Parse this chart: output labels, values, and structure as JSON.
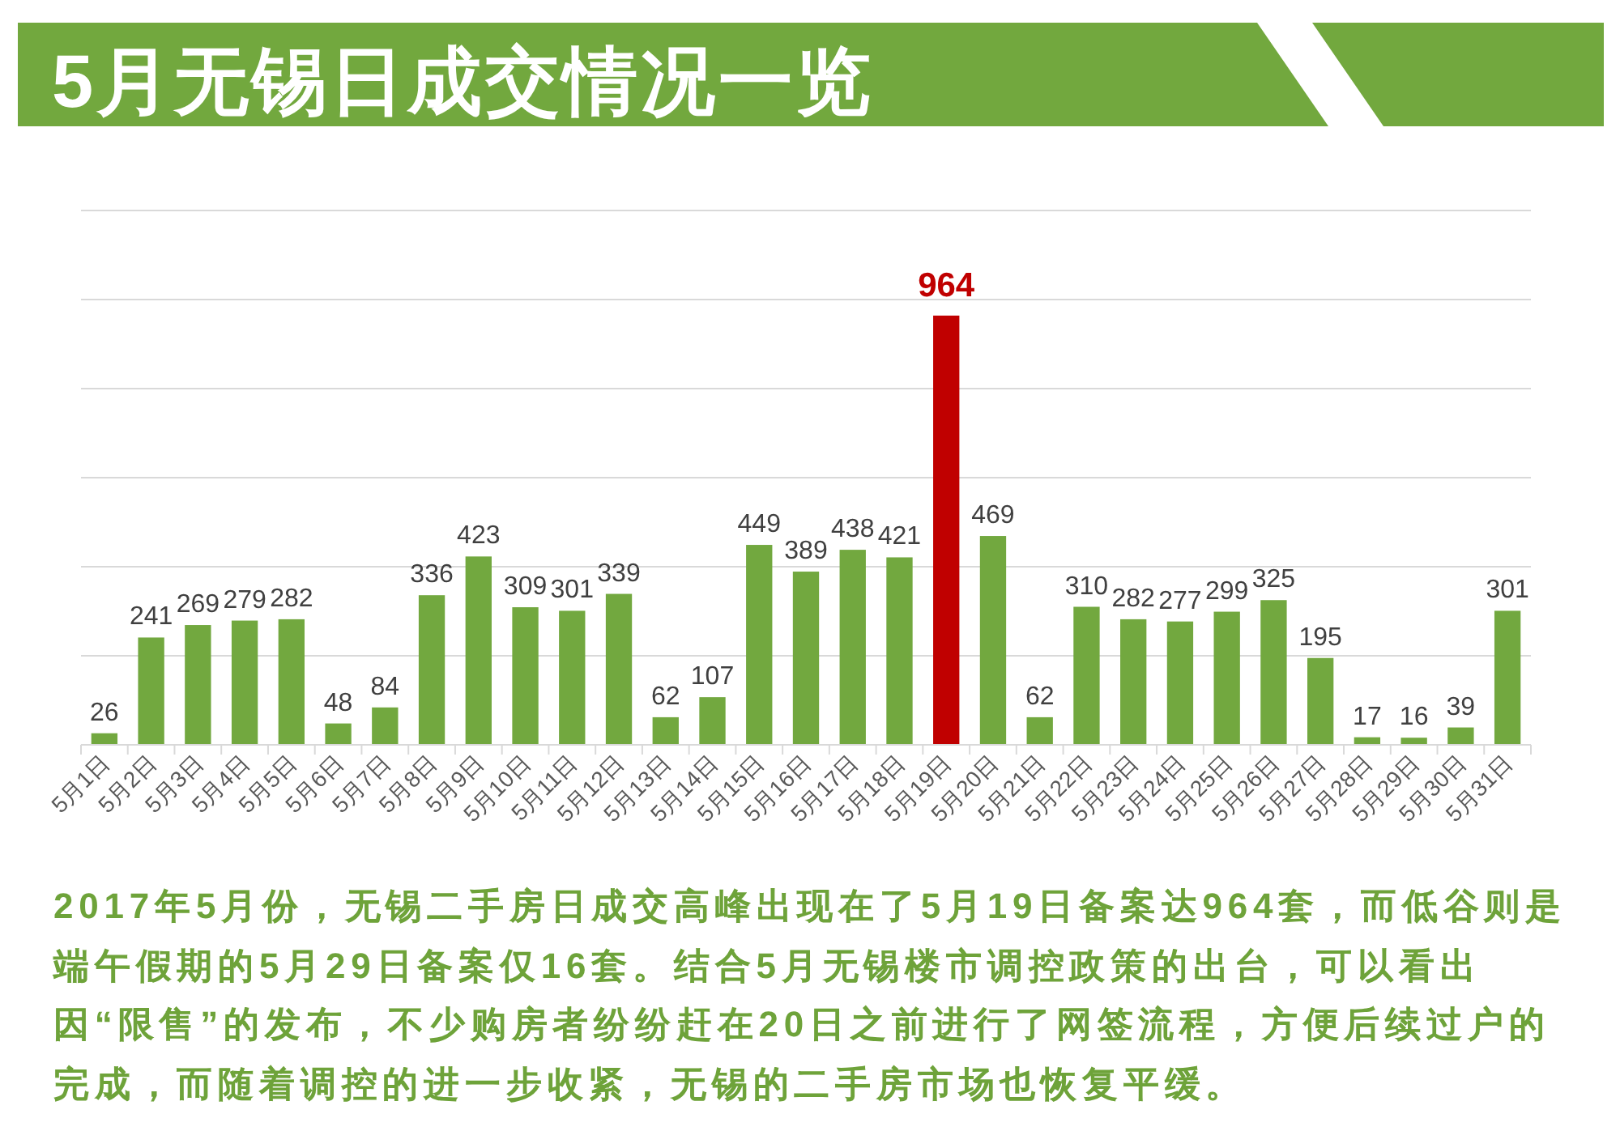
{
  "chart_data": {
    "type": "bar",
    "title": "5月无锡日成交情况一览",
    "categories": [
      "5月1日",
      "5月2日",
      "5月3日",
      "5月4日",
      "5月5日",
      "5月6日",
      "5月7日",
      "5月8日",
      "5月9日",
      "5月10日",
      "5月11日",
      "5月12日",
      "5月13日",
      "5月14日",
      "5月15日",
      "5月16日",
      "5月17日",
      "5月18日",
      "5月19日",
      "5月20日",
      "5月21日",
      "5月22日",
      "5月23日",
      "5月24日",
      "5月25日",
      "5月26日",
      "5月27日",
      "5月28日",
      "5月29日",
      "5月30日",
      "5月31日"
    ],
    "values": [
      26,
      241,
      269,
      279,
      282,
      48,
      84,
      336,
      423,
      309,
      301,
      339,
      62,
      107,
      449,
      389,
      438,
      421,
      964,
      469,
      62,
      310,
      282,
      277,
      299,
      325,
      195,
      17,
      16,
      39,
      301
    ],
    "colors": [
      "#72a83f",
      "#72a83f",
      "#72a83f",
      "#72a83f",
      "#72a83f",
      "#72a83f",
      "#72a83f",
      "#72a83f",
      "#72a83f",
      "#72a83f",
      "#72a83f",
      "#72a83f",
      "#72a83f",
      "#72a83f",
      "#72a83f",
      "#72a83f",
      "#72a83f",
      "#72a83f",
      "#c00000",
      "#72a83f",
      "#72a83f",
      "#72a83f",
      "#72a83f",
      "#72a83f",
      "#72a83f",
      "#72a83f",
      "#72a83f",
      "#72a83f",
      "#72a83f",
      "#72a83f",
      "#72a83f"
    ],
    "ylim": [
      0,
      1200
    ],
    "yticks": [
      {
        "value": 0,
        "label": null
      },
      {
        "value": 200,
        "label": null
      },
      {
        "value": 400,
        "label": null
      },
      {
        "value": 600,
        "label": null
      },
      {
        "value": 800,
        "label": null
      },
      {
        "value": 1000,
        "label": null
      },
      {
        "value": 1200,
        "label": null
      }
    ],
    "grid": "y",
    "tick_labels": "x",
    "data_labels": true,
    "annotations": [
      "2017年5月份，无锡二手房日成交高峰出现在了5月19日备案达964套，而低谷则是端午假期的5月29日备案仅16套。结合5月无锡楼市调控政策的出台，可以看出因“限售”的发布，不少购房者纷纷赶在20日之前进行了网签流程，方便后续过户的完成，而随着调控的进一步收紧，无锡的二手房市场也恢复平缓。"
    ]
  }
}
